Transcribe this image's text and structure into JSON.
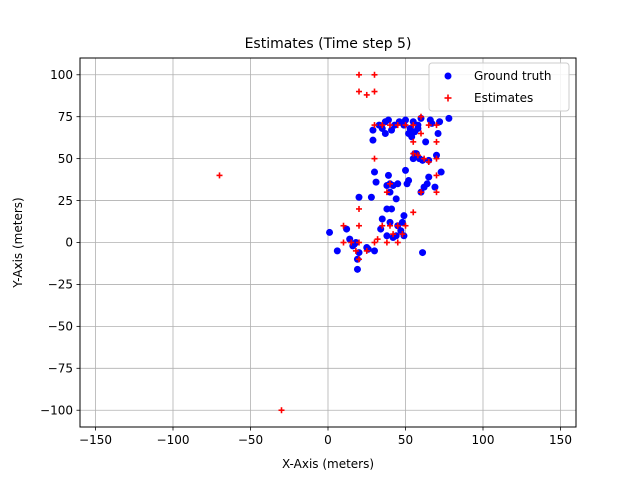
{
  "chart_data": {
    "type": "scatter",
    "title": "Estimates (Time step 5)",
    "xlabel": "X-Axis (meters)",
    "ylabel": "Y-Axis (meters)",
    "xlim": [
      -160,
      160
    ],
    "ylim": [
      -110,
      110
    ],
    "xticks": [
      -150,
      -100,
      -50,
      0,
      50,
      100,
      150
    ],
    "yticks": [
      -100,
      -75,
      -50,
      -25,
      0,
      25,
      50,
      75,
      100
    ],
    "xtick_labels": [
      "−150",
      "−100",
      "−50",
      "0",
      "50",
      "100",
      "150"
    ],
    "ytick_labels": [
      "−100",
      "−75",
      "−50",
      "−25",
      "0",
      "25",
      "50",
      "75",
      "100"
    ],
    "grid": true,
    "legend_position": "top-right",
    "series": [
      {
        "name": "Ground truth",
        "marker": "circle",
        "color": "#0000ff",
        "points": [
          [
            1,
            6
          ],
          [
            6,
            -5
          ],
          [
            12,
            8
          ],
          [
            14,
            2
          ],
          [
            16,
            -2
          ],
          [
            18,
            0
          ],
          [
            19,
            -10
          ],
          [
            19,
            -16
          ],
          [
            20,
            27
          ],
          [
            20,
            -6
          ],
          [
            25,
            -3
          ],
          [
            28,
            27
          ],
          [
            29,
            61
          ],
          [
            29,
            67
          ],
          [
            30,
            -5
          ],
          [
            30,
            42
          ],
          [
            31,
            36
          ],
          [
            33,
            70
          ],
          [
            34,
            8
          ],
          [
            35,
            14
          ],
          [
            35,
            68
          ],
          [
            37,
            72
          ],
          [
            37,
            65
          ],
          [
            38,
            20
          ],
          [
            38,
            4
          ],
          [
            38,
            34
          ],
          [
            39,
            40
          ],
          [
            39,
            73
          ],
          [
            40,
            12
          ],
          [
            40,
            30
          ],
          [
            41,
            20
          ],
          [
            41,
            67
          ],
          [
            42,
            3
          ],
          [
            42,
            34
          ],
          [
            43,
            70
          ],
          [
            44,
            4
          ],
          [
            44,
            26
          ],
          [
            45,
            35
          ],
          [
            45,
            10
          ],
          [
            46,
            72
          ],
          [
            47,
            7
          ],
          [
            48,
            12
          ],
          [
            49,
            4
          ],
          [
            49,
            70
          ],
          [
            49,
            16
          ],
          [
            50,
            43
          ],
          [
            50,
            73
          ],
          [
            51,
            35
          ],
          [
            52,
            65
          ],
          [
            53,
            68
          ],
          [
            54,
            63
          ],
          [
            55,
            72
          ],
          [
            55,
            50
          ],
          [
            56,
            66
          ],
          [
            57,
            53
          ],
          [
            58,
            68
          ],
          [
            58,
            70
          ],
          [
            59,
            50
          ],
          [
            60,
            30
          ],
          [
            60,
            74
          ],
          [
            61,
            -6
          ],
          [
            61,
            49
          ],
          [
            62,
            33
          ],
          [
            63,
            60
          ],
          [
            64,
            35
          ],
          [
            65,
            39
          ],
          [
            65,
            49
          ],
          [
            66,
            73
          ],
          [
            67,
            71
          ],
          [
            69,
            33
          ],
          [
            70,
            52
          ],
          [
            71,
            65
          ],
          [
            72,
            72
          ],
          [
            73,
            42
          ],
          [
            78,
            74
          ],
          [
            17,
            -1
          ],
          [
            26,
            -4
          ],
          [
            40,
            35
          ],
          [
            52,
            37
          ],
          [
            56,
            53
          ]
        ]
      },
      {
        "name": "Estimates",
        "marker": "plus",
        "color": "#ff0000",
        "points": [
          [
            -70,
            40
          ],
          [
            -30,
            -100
          ],
          [
            10,
            10
          ],
          [
            10,
            0
          ],
          [
            15,
            0
          ],
          [
            18,
            -5
          ],
          [
            20,
            100
          ],
          [
            20,
            90
          ],
          [
            20,
            20
          ],
          [
            20,
            10
          ],
          [
            20,
            -10
          ],
          [
            20,
            0
          ],
          [
            25,
            88
          ],
          [
            25,
            -5
          ],
          [
            30,
            100
          ],
          [
            30,
            90
          ],
          [
            30,
            70
          ],
          [
            30,
            50
          ],
          [
            30,
            0
          ],
          [
            35,
            70
          ],
          [
            35,
            10
          ],
          [
            38,
            30
          ],
          [
            38,
            0
          ],
          [
            40,
            70
          ],
          [
            40,
            35
          ],
          [
            40,
            10
          ],
          [
            42,
            5
          ],
          [
            45,
            10
          ],
          [
            45,
            70
          ],
          [
            48,
            5
          ],
          [
            50,
            70
          ],
          [
            50,
            10
          ],
          [
            55,
            70
          ],
          [
            55,
            60
          ],
          [
            55,
            53
          ],
          [
            55,
            18
          ],
          [
            58,
            52
          ],
          [
            60,
            75
          ],
          [
            60,
            65
          ],
          [
            60,
            30
          ],
          [
            62,
            50
          ],
          [
            65,
            70
          ],
          [
            65,
            48
          ],
          [
            70,
            70
          ],
          [
            70,
            60
          ],
          [
            70,
            50
          ],
          [
            70,
            40
          ],
          [
            70,
            30
          ],
          [
            32,
            2
          ],
          [
            45,
            0
          ]
        ]
      }
    ]
  }
}
